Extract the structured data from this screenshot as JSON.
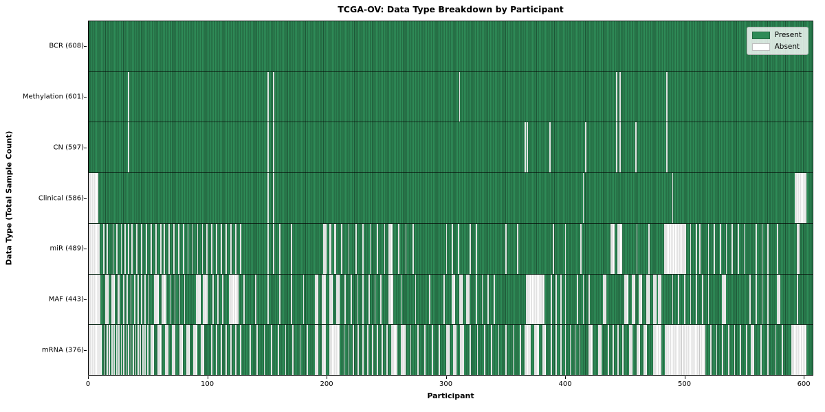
{
  "figure": {
    "title": "TCGA-OV: Data Type Breakdown by Participant",
    "xlabel": "Participant",
    "ylabel": "Data Type (Total Sample Count)"
  },
  "chart_data": {
    "type": "heatmap",
    "subtype": "presence-absence-matrix",
    "title": "TCGA-OV: Data Type Breakdown by Participant",
    "xlabel": "Participant",
    "ylabel": "Data Type (Total Sample Count)",
    "n_participants": 608,
    "xlim": [
      0,
      608
    ],
    "x_ticks": [
      0,
      100,
      200,
      300,
      400,
      500,
      600
    ],
    "grid": false,
    "legend_position": "upper right",
    "legend": [
      {
        "label": "Present",
        "color": "#2e8b57"
      },
      {
        "label": "Absent",
        "color": "#ffffff"
      }
    ],
    "colors": {
      "present": "#2e8b57",
      "absent": "#ffffff",
      "edge": "#1b4d32"
    },
    "rows": [
      {
        "name": "BCR",
        "label": "BCR (608)",
        "present_count": 608,
        "absent_ranges": []
      },
      {
        "name": "Methylation",
        "label": "Methylation (601)",
        "present_count": 601,
        "absent_ranges": [
          [
            33,
            33
          ],
          [
            150,
            150
          ],
          [
            155,
            155
          ],
          [
            311,
            311
          ],
          [
            443,
            443
          ],
          [
            446,
            446
          ],
          [
            485,
            485
          ]
        ]
      },
      {
        "name": "CN",
        "label": "CN (597)",
        "present_count": 597,
        "absent_ranges": [
          [
            33,
            33
          ],
          [
            150,
            150
          ],
          [
            155,
            155
          ],
          [
            366,
            366
          ],
          [
            368,
            368
          ],
          [
            387,
            387
          ],
          [
            417,
            417
          ],
          [
            443,
            443
          ],
          [
            446,
            446
          ],
          [
            459,
            459
          ],
          [
            485,
            485
          ]
        ]
      },
      {
        "name": "Clinical",
        "label": "Clinical (586)",
        "present_count": 586,
        "absent_ranges": [
          [
            0,
            7
          ],
          [
            150,
            150
          ],
          [
            155,
            155
          ],
          [
            415,
            415
          ],
          [
            490,
            490
          ],
          [
            593,
            602
          ]
        ]
      },
      {
        "name": "miR",
        "label": "miR (489)",
        "present_count": 489,
        "absent_ranges": [
          [
            0,
            8
          ],
          [
            12,
            12
          ],
          [
            15,
            15
          ],
          [
            20,
            20
          ],
          [
            23,
            23
          ],
          [
            27,
            27
          ],
          [
            30,
            30
          ],
          [
            33,
            33
          ],
          [
            36,
            36
          ],
          [
            40,
            40
          ],
          [
            44,
            44
          ],
          [
            48,
            48
          ],
          [
            52,
            52
          ],
          [
            56,
            56
          ],
          [
            60,
            60
          ],
          [
            63,
            63
          ],
          [
            67,
            67
          ],
          [
            71,
            71
          ],
          [
            75,
            75
          ],
          [
            79,
            79
          ],
          [
            83,
            83
          ],
          [
            87,
            87
          ],
          [
            91,
            91
          ],
          [
            95,
            95
          ],
          [
            99,
            99
          ],
          [
            103,
            103
          ],
          [
            107,
            107
          ],
          [
            111,
            111
          ],
          [
            115,
            115
          ],
          [
            119,
            119
          ],
          [
            123,
            123
          ],
          [
            127,
            127
          ],
          [
            150,
            150
          ],
          [
            155,
            155
          ],
          [
            160,
            160
          ],
          [
            170,
            170
          ],
          [
            197,
            199
          ],
          [
            202,
            203
          ],
          [
            206,
            207
          ],
          [
            212,
            212
          ],
          [
            218,
            218
          ],
          [
            224,
            224
          ],
          [
            230,
            230
          ],
          [
            236,
            236
          ],
          [
            242,
            242
          ],
          [
            248,
            248
          ],
          [
            252,
            254
          ],
          [
            260,
            260
          ],
          [
            266,
            266
          ],
          [
            272,
            272
          ],
          [
            300,
            300
          ],
          [
            305,
            305
          ],
          [
            310,
            310
          ],
          [
            320,
            320
          ],
          [
            325,
            325
          ],
          [
            350,
            350
          ],
          [
            360,
            360
          ],
          [
            390,
            390
          ],
          [
            400,
            400
          ],
          [
            413,
            413
          ],
          [
            438,
            441
          ],
          [
            444,
            447
          ],
          [
            460,
            460
          ],
          [
            470,
            470
          ],
          [
            483,
            501
          ],
          [
            505,
            505
          ],
          [
            510,
            510
          ],
          [
            513,
            513
          ],
          [
            520,
            520
          ],
          [
            525,
            525
          ],
          [
            530,
            530
          ],
          [
            535,
            535
          ],
          [
            540,
            540
          ],
          [
            545,
            545
          ],
          [
            550,
            550
          ],
          [
            560,
            560
          ],
          [
            565,
            565
          ],
          [
            570,
            570
          ],
          [
            578,
            578
          ],
          [
            595,
            596
          ]
        ]
      },
      {
        "name": "MAF",
        "label": "MAF (443)",
        "present_count": 443,
        "absent_ranges": [
          [
            0,
            9
          ],
          [
            14,
            16
          ],
          [
            19,
            21
          ],
          [
            24,
            25
          ],
          [
            29,
            29
          ],
          [
            32,
            32
          ],
          [
            35,
            35
          ],
          [
            38,
            38
          ],
          [
            41,
            41
          ],
          [
            44,
            44
          ],
          [
            47,
            47
          ],
          [
            50,
            50
          ],
          [
            55,
            58
          ],
          [
            61,
            64
          ],
          [
            68,
            68
          ],
          [
            72,
            72
          ],
          [
            76,
            76
          ],
          [
            80,
            80
          ],
          [
            90,
            93
          ],
          [
            96,
            99
          ],
          [
            104,
            104
          ],
          [
            108,
            108
          ],
          [
            112,
            112
          ],
          [
            118,
            125
          ],
          [
            130,
            130
          ],
          [
            140,
            140
          ],
          [
            150,
            150
          ],
          [
            160,
            160
          ],
          [
            170,
            170
          ],
          [
            180,
            180
          ],
          [
            190,
            192
          ],
          [
            196,
            198
          ],
          [
            202,
            204
          ],
          [
            208,
            210
          ],
          [
            215,
            215
          ],
          [
            220,
            220
          ],
          [
            225,
            225
          ],
          [
            230,
            230
          ],
          [
            235,
            235
          ],
          [
            240,
            240
          ],
          [
            245,
            245
          ],
          [
            252,
            255
          ],
          [
            262,
            262
          ],
          [
            274,
            274
          ],
          [
            286,
            286
          ],
          [
            298,
            298
          ],
          [
            305,
            307
          ],
          [
            311,
            313
          ],
          [
            317,
            319
          ],
          [
            325,
            325
          ],
          [
            330,
            330
          ],
          [
            335,
            335
          ],
          [
            340,
            340
          ],
          [
            367,
            382
          ],
          [
            388,
            388
          ],
          [
            392,
            392
          ],
          [
            396,
            396
          ],
          [
            400,
            400
          ],
          [
            410,
            410
          ],
          [
            415,
            415
          ],
          [
            420,
            420
          ],
          [
            432,
            434
          ],
          [
            450,
            452
          ],
          [
            456,
            458
          ],
          [
            462,
            464
          ],
          [
            468,
            470
          ],
          [
            474,
            476
          ],
          [
            478,
            480
          ],
          [
            490,
            490
          ],
          [
            495,
            495
          ],
          [
            500,
            500
          ],
          [
            505,
            505
          ],
          [
            510,
            510
          ],
          [
            515,
            515
          ],
          [
            520,
            520
          ],
          [
            532,
            534
          ],
          [
            555,
            555
          ],
          [
            560,
            560
          ],
          [
            565,
            565
          ],
          [
            570,
            570
          ],
          [
            578,
            580
          ],
          [
            595,
            595
          ]
        ]
      },
      {
        "name": "mRNA",
        "label": "mRNA (376)",
        "present_count": 376,
        "absent_ranges": [
          [
            0,
            10
          ],
          [
            13,
            13
          ],
          [
            15,
            15
          ],
          [
            17,
            17
          ],
          [
            19,
            19
          ],
          [
            21,
            21
          ],
          [
            23,
            23
          ],
          [
            25,
            25
          ],
          [
            27,
            27
          ],
          [
            29,
            29
          ],
          [
            31,
            31
          ],
          [
            33,
            33
          ],
          [
            35,
            35
          ],
          [
            37,
            37
          ],
          [
            39,
            39
          ],
          [
            41,
            41
          ],
          [
            43,
            43
          ],
          [
            45,
            45
          ],
          [
            47,
            47
          ],
          [
            49,
            49
          ],
          [
            52,
            54
          ],
          [
            58,
            60
          ],
          [
            64,
            66
          ],
          [
            70,
            72
          ],
          [
            76,
            78
          ],
          [
            82,
            84
          ],
          [
            88,
            90
          ],
          [
            94,
            96
          ],
          [
            103,
            103
          ],
          [
            107,
            107
          ],
          [
            111,
            111
          ],
          [
            115,
            115
          ],
          [
            119,
            119
          ],
          [
            123,
            123
          ],
          [
            127,
            127
          ],
          [
            135,
            135
          ],
          [
            141,
            141
          ],
          [
            147,
            147
          ],
          [
            153,
            153
          ],
          [
            159,
            159
          ],
          [
            165,
            165
          ],
          [
            171,
            171
          ],
          [
            177,
            177
          ],
          [
            183,
            183
          ],
          [
            190,
            192
          ],
          [
            196,
            198
          ],
          [
            202,
            210
          ],
          [
            214,
            214
          ],
          [
            218,
            218
          ],
          [
            222,
            222
          ],
          [
            226,
            226
          ],
          [
            230,
            230
          ],
          [
            234,
            234
          ],
          [
            238,
            238
          ],
          [
            242,
            242
          ],
          [
            246,
            246
          ],
          [
            250,
            250
          ],
          [
            254,
            258
          ],
          [
            262,
            265
          ],
          [
            270,
            270
          ],
          [
            276,
            276
          ],
          [
            282,
            282
          ],
          [
            288,
            288
          ],
          [
            294,
            294
          ],
          [
            300,
            302
          ],
          [
            306,
            308
          ],
          [
            312,
            314
          ],
          [
            320,
            320
          ],
          [
            326,
            326
          ],
          [
            332,
            332
          ],
          [
            338,
            338
          ],
          [
            344,
            344
          ],
          [
            350,
            350
          ],
          [
            356,
            356
          ],
          [
            362,
            362
          ],
          [
            366,
            370
          ],
          [
            374,
            377
          ],
          [
            381,
            383
          ],
          [
            388,
            388
          ],
          [
            392,
            392
          ],
          [
            396,
            396
          ],
          [
            400,
            400
          ],
          [
            404,
            404
          ],
          [
            408,
            408
          ],
          [
            412,
            412
          ],
          [
            420,
            422
          ],
          [
            428,
            430
          ],
          [
            436,
            436
          ],
          [
            440,
            440
          ],
          [
            444,
            444
          ],
          [
            448,
            448
          ],
          [
            454,
            456
          ],
          [
            460,
            462
          ],
          [
            466,
            468
          ],
          [
            474,
            480
          ],
          [
            484,
            517
          ],
          [
            522,
            522
          ],
          [
            527,
            527
          ],
          [
            532,
            532
          ],
          [
            537,
            537
          ],
          [
            542,
            542
          ],
          [
            547,
            547
          ],
          [
            552,
            552
          ],
          [
            556,
            558
          ],
          [
            564,
            564
          ],
          [
            570,
            570
          ],
          [
            576,
            576
          ],
          [
            582,
            582
          ],
          [
            590,
            602
          ]
        ]
      }
    ]
  }
}
